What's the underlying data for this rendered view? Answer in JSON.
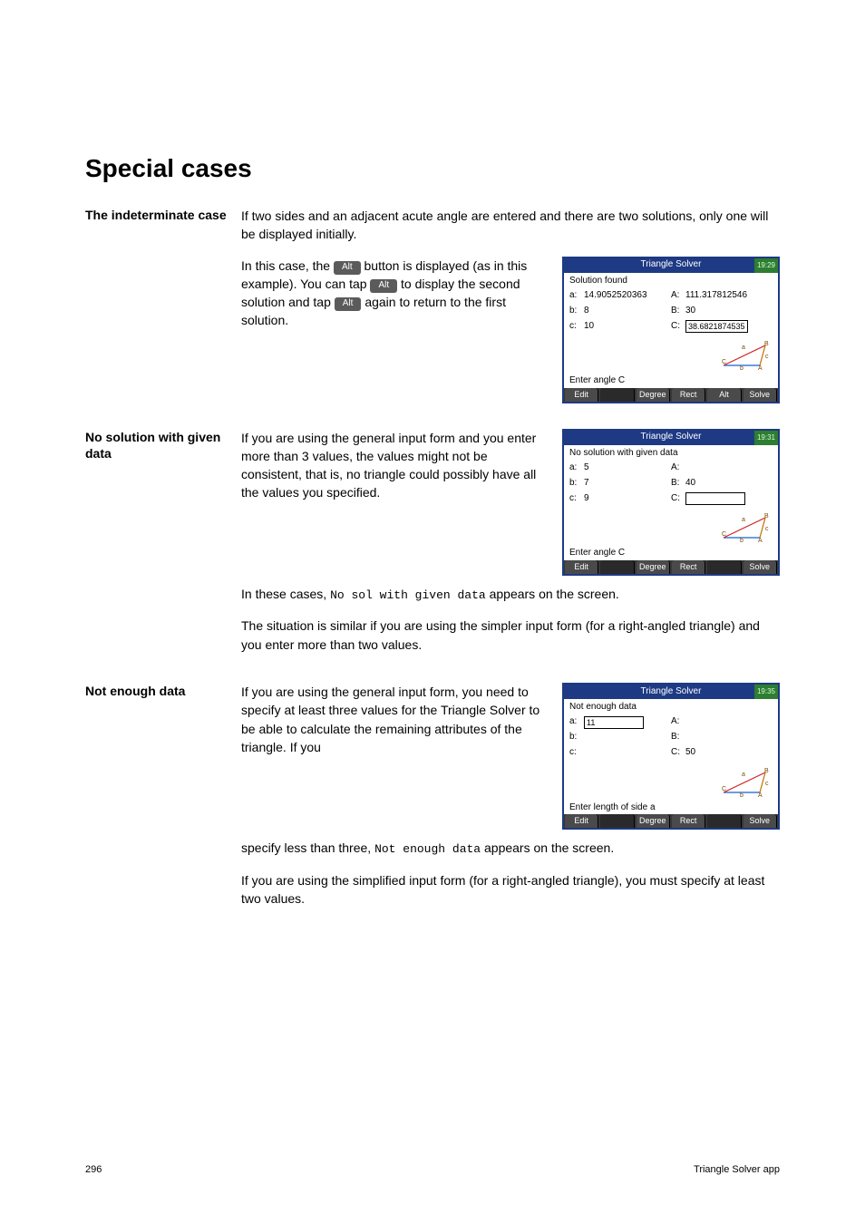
{
  "heading": "Special cases",
  "sections": {
    "indet": {
      "label": "The indeterminate case",
      "intro": "If two sides and an adjacent acute angle are entered and there are two solutions, only one will be displayed initially.",
      "para_parts": {
        "p1": "In this case, the ",
        "p2": " button is displayed (as in this example). You can tap ",
        "p3": " to display the second solution and tap ",
        "p4": " again to return to the first solution."
      },
      "alt_label": "Alt",
      "calc": {
        "title": "Triangle Solver",
        "clock": "19:29",
        "status": "Solution found",
        "left": [
          {
            "k": "a:",
            "v": "14.9052520363"
          },
          {
            "k": "b:",
            "v": "8"
          },
          {
            "k": "c:",
            "v": "10"
          }
        ],
        "right": [
          {
            "k": "A:",
            "v": "111.317812546"
          },
          {
            "k": "B:",
            "v": "30"
          },
          {
            "k": "C:",
            "v": "38.6821874535",
            "boxed": true
          }
        ],
        "prompt": "Enter angle C",
        "softkeys": [
          "Edit",
          "",
          "Degree",
          "Rect",
          "Alt",
          "Solve"
        ],
        "colors": {
          "header": "#1e3a84"
        }
      }
    },
    "nosol": {
      "label": "No solution with given data",
      "para1": "If you are using the general input form and you enter more than 3 values, the values might not be consistent, that is, no triangle could possibly have all the values you specified.",
      "para1_tail_a": "In these cases, ",
      "para1_code": "No sol with given data",
      "para1_tail_b": " appears on the screen.",
      "para2": "The situation is similar if you are using the simpler input form (for a right-angled triangle) and you enter more than two values.",
      "calc": {
        "title": "Triangle Solver",
        "clock": "19:31",
        "status": "No solution with given data",
        "left": [
          {
            "k": "a:",
            "v": "5"
          },
          {
            "k": "b:",
            "v": "7"
          },
          {
            "k": "c:",
            "v": "9"
          }
        ],
        "right": [
          {
            "k": "A:",
            "v": ""
          },
          {
            "k": "B:",
            "v": "40"
          },
          {
            "k": "C:",
            "v": "",
            "boxed": true
          }
        ],
        "prompt": "Enter angle C",
        "softkeys": [
          "Edit",
          "",
          "Degree",
          "Rect",
          "",
          "Solve"
        ]
      }
    },
    "notenough": {
      "label": "Not enough data",
      "para1": "If you are using the general input form, you need to specify at least three values for the Triangle Solver to be able to calculate the remaining attributes of the triangle. If you",
      "para1_tail_a": "specify less than three, ",
      "para1_code": "Not enough data",
      "para1_tail_b": " appears on the screen.",
      "para2": "If you are using the simplified input form (for a right-angled triangle), you must specify at least two values.",
      "calc": {
        "title": "Triangle Solver",
        "clock": "19:35",
        "status": "Not enough data",
        "left": [
          {
            "k": "a:",
            "v": "11",
            "boxed": true
          },
          {
            "k": "b:",
            "v": ""
          },
          {
            "k": "c:",
            "v": ""
          }
        ],
        "right": [
          {
            "k": "A:",
            "v": ""
          },
          {
            "k": "B:",
            "v": ""
          },
          {
            "k": "C:",
            "v": "50"
          }
        ],
        "prompt": "Enter length of side a",
        "softkeys": [
          "Edit",
          "",
          "Degree",
          "Rect",
          "",
          "Solve"
        ]
      }
    }
  },
  "footer": {
    "page": "296",
    "title": "Triangle Solver app"
  },
  "triangle_svg": {
    "stroke_a": "#d02020",
    "stroke_b": "#1560d0",
    "stroke_c": "#c07000",
    "label_color": "#7a4a00"
  }
}
